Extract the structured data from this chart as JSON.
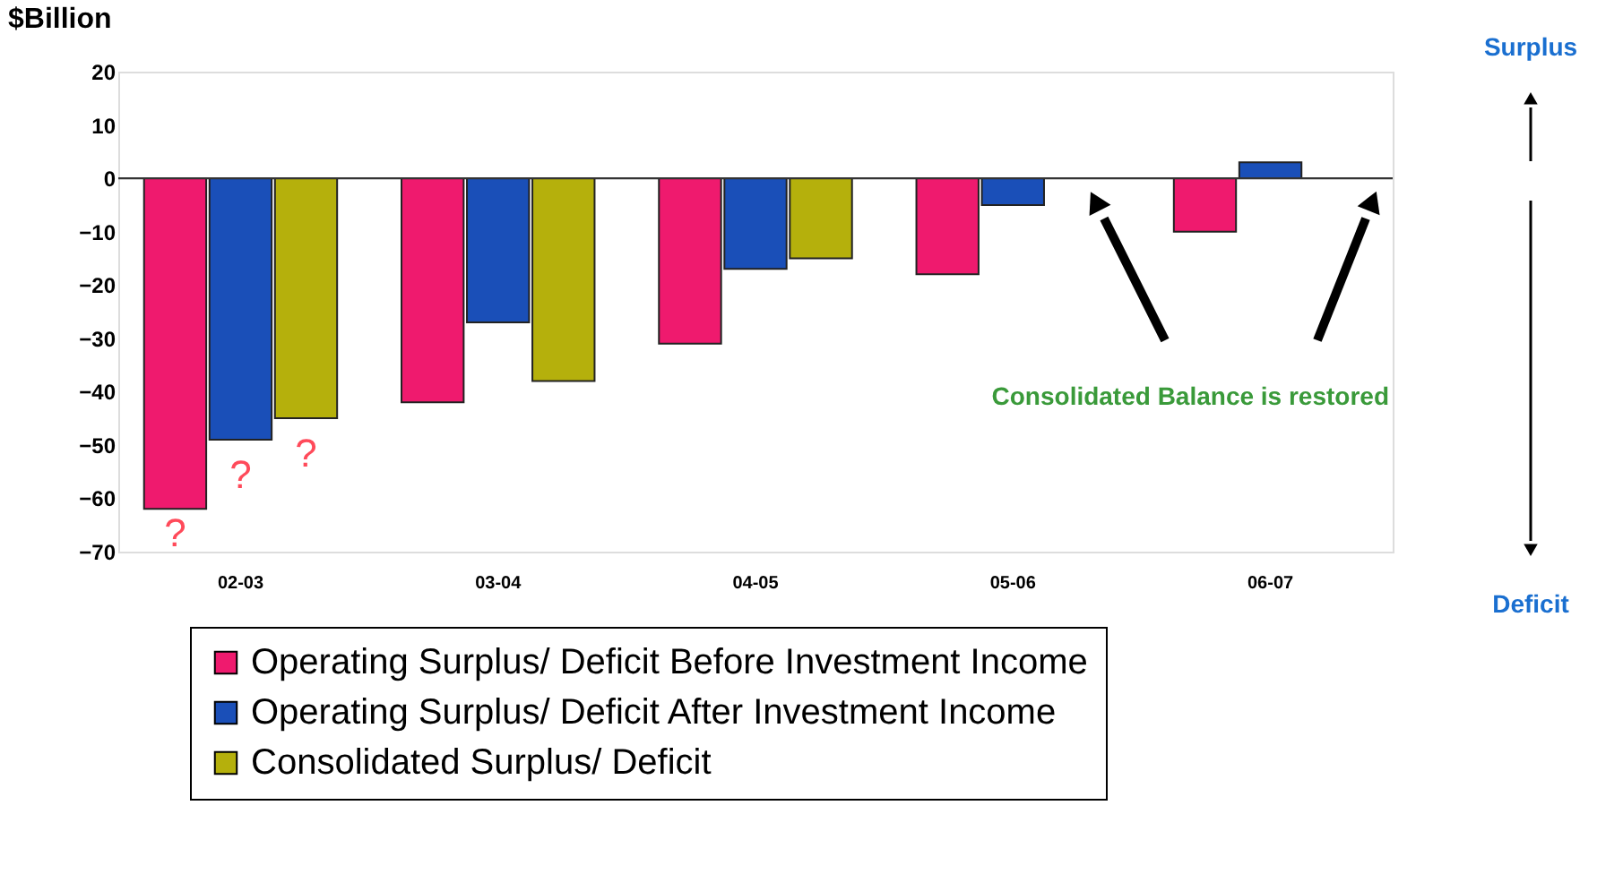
{
  "chart_data": {
    "type": "bar",
    "ylabel": "$Billion",
    "categories": [
      "02-03",
      "03-04",
      "04-05",
      "05-06",
      "06-07"
    ],
    "series": [
      {
        "name": "Operating Surplus/ Deficit Before Investment Income",
        "color": "#ef1a6e",
        "values": [
          -62,
          -42,
          -31,
          -18,
          -10
        ]
      },
      {
        "name": "Operating Surplus/ Deficit After Investment Income",
        "color": "#1a4fb8",
        "values": [
          -49,
          -27,
          -17,
          -5,
          3
        ]
      },
      {
        "name": "Consolidated Surplus/ Deficit",
        "color": "#b5b00c",
        "values": [
          -45,
          -38,
          -15,
          null,
          null
        ]
      }
    ],
    "ylim": [
      -70,
      20
    ],
    "yticks": [
      20,
      10,
      0,
      -10,
      -20,
      -30,
      -40,
      -50,
      -60,
      -70
    ],
    "grid": false,
    "legend": "bottom",
    "ref_lines": [
      {
        "axis": "y",
        "value": 0,
        "color": "#333333"
      }
    ],
    "annotations": [
      "?",
      "?",
      "?",
      "Consolidated Balance is restored",
      "Surplus",
      "Deficit"
    ]
  }
}
